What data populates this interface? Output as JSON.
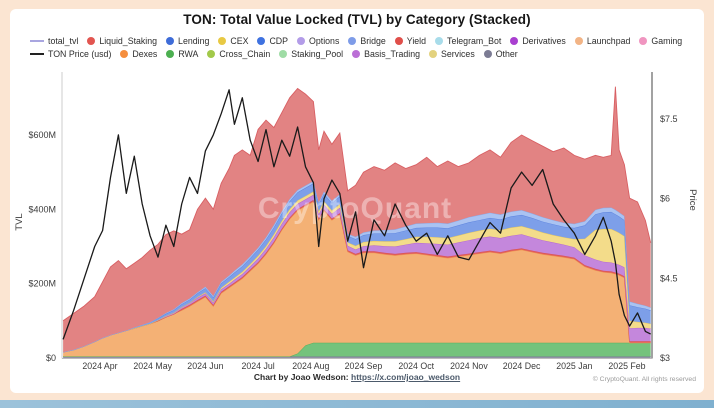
{
  "title": "TON: Total Value Locked (TVL) by Category (Stacked)",
  "watermark": "CryptoQuant",
  "footer": {
    "credit": "Chart by Joao Wedson:",
    "link": "https://x.com/joao_wedson",
    "copyright": "© CryptoQuant. All rights reserved"
  },
  "legend": {
    "row1": [
      {
        "label": "total_tvl",
        "color": "#a9a6e0",
        "type": "line"
      },
      {
        "label": "Liquid_Staking",
        "color": "#e25550",
        "type": "dot"
      },
      {
        "label": "Lending",
        "color": "#3e6cd8",
        "type": "dot"
      },
      {
        "label": "CEX",
        "color": "#e8c943",
        "type": "dot"
      },
      {
        "label": "CDP",
        "color": "#3f72e0",
        "type": "dot"
      },
      {
        "label": "Options",
        "color": "#b39ce8",
        "type": "dot"
      },
      {
        "label": "Bridge",
        "color": "#7e9ce8",
        "type": "dot"
      },
      {
        "label": "Yield",
        "color": "#e04f4a",
        "type": "dot"
      },
      {
        "label": "Telegram_Bot",
        "color": "#a8dcea",
        "type": "dot"
      },
      {
        "label": "Derivatives",
        "color": "#a93fd0",
        "type": "dot"
      },
      {
        "label": "Launchpad",
        "color": "#f2b486",
        "type": "dot"
      },
      {
        "label": "Gaming",
        "color": "#f095c0",
        "type": "dot"
      }
    ],
    "row2": [
      {
        "label": "TON Price (usd)",
        "color": "#222222",
        "type": "line"
      },
      {
        "label": "Dexes",
        "color": "#f58e3e",
        "type": "dot"
      },
      {
        "label": "RWA",
        "color": "#4caf50",
        "type": "dot"
      },
      {
        "label": "Cross_Chain",
        "color": "#a2c94a",
        "type": "dot"
      },
      {
        "label": "Staking_Pool",
        "color": "#9fdca5",
        "type": "dot"
      },
      {
        "label": "Basis_Trading",
        "color": "#bb6fd6",
        "type": "dot"
      },
      {
        "label": "Services",
        "color": "#e3d27e",
        "type": "dot"
      },
      {
        "label": "Other",
        "color": "#7c7c94",
        "type": "dot"
      }
    ]
  },
  "chart_data": {
    "type": "area",
    "stacked": true,
    "x_unit": "months since 2024-03-01",
    "x_axis_ticks": [
      {
        "m": 1,
        "label": "2024 Apr"
      },
      {
        "m": 2,
        "label": "2024 May"
      },
      {
        "m": 3,
        "label": "2024 Jun"
      },
      {
        "m": 4,
        "label": "2024 Jul"
      },
      {
        "m": 5,
        "label": "2024 Aug"
      },
      {
        "m": 6,
        "label": "2024 Sep"
      },
      {
        "m": 7,
        "label": "2024 Oct"
      },
      {
        "m": 8,
        "label": "2024 Nov"
      },
      {
        "m": 9,
        "label": "2024 Dec"
      },
      {
        "m": 10,
        "label": "2025 Jan"
      },
      {
        "m": 11,
        "label": "2025 Feb"
      }
    ],
    "left_axis": {
      "label": "TVL",
      "ticks": [
        {
          "v": 0,
          "label": "$0"
        },
        {
          "v": 200,
          "label": "$200M"
        },
        {
          "v": 400,
          "label": "$400M"
        },
        {
          "v": 600,
          "label": "$600M"
        }
      ],
      "range": [
        0,
        750
      ]
    },
    "right_axis": {
      "label": "Price",
      "ticks": [
        {
          "v": 3,
          "label": "$3"
        },
        {
          "v": 4.5,
          "label": "$4.5"
        },
        {
          "v": 6,
          "label": "$6"
        },
        {
          "v": 7.5,
          "label": "$7.5"
        }
      ],
      "range": [
        3,
        8.25
      ]
    },
    "grid": false,
    "legend_position": "top",
    "x": [
      0.3,
      0.5,
      0.7,
      0.9,
      1.05,
      1.2,
      1.35,
      1.5,
      1.65,
      1.8,
      1.95,
      2.1,
      2.25,
      2.4,
      2.55,
      2.7,
      2.85,
      3.0,
      3.15,
      3.3,
      3.45,
      3.55,
      3.7,
      3.85,
      4.0,
      4.15,
      4.3,
      4.45,
      4.6,
      4.75,
      4.9,
      5.05,
      5.15,
      5.25,
      5.4,
      5.55,
      5.7,
      5.85,
      6.0,
      6.2,
      6.4,
      6.6,
      6.8,
      7.0,
      7.2,
      7.4,
      7.6,
      7.8,
      8.0,
      8.2,
      8.4,
      8.6,
      8.8,
      9.0,
      9.2,
      9.4,
      9.6,
      9.8,
      10.0,
      10.2,
      10.4,
      10.55,
      10.7,
      10.78,
      10.85,
      10.95,
      11.05,
      11.2,
      11.35,
      11.45
    ],
    "series": [
      {
        "name": "Other",
        "fill": "#8f90a6",
        "stroke": "#7c7c94",
        "unit": "$M",
        "values": [
          4,
          4,
          4,
          4,
          4,
          4,
          4,
          4,
          4,
          4,
          4,
          4,
          4,
          4,
          4,
          4,
          4,
          4,
          4,
          4,
          4,
          4,
          4,
          4,
          4,
          4,
          4,
          4,
          4,
          4,
          4,
          4,
          4,
          4,
          4,
          4,
          4,
          4,
          4,
          4,
          4,
          4,
          4,
          4,
          4,
          4,
          4,
          4,
          4,
          4,
          4,
          4,
          4,
          4,
          4,
          4,
          4,
          4,
          4,
          4,
          4,
          4,
          4,
          4,
          4,
          4,
          4,
          4,
          4,
          4
        ]
      },
      {
        "name": "RWA",
        "fill": "#74c37c",
        "stroke": "#54b05e",
        "unit": "$M",
        "values": [
          0,
          0,
          0,
          0,
          0,
          0,
          0,
          0,
          0,
          0,
          0,
          0,
          0,
          0,
          0,
          0,
          0,
          0,
          0,
          0,
          0,
          0,
          0,
          0,
          0,
          0,
          0,
          0,
          0,
          8,
          30,
          37,
          37,
          37,
          37,
          37,
          37,
          37,
          37,
          37,
          37,
          37,
          37,
          37,
          37,
          37,
          37,
          37,
          37,
          37,
          37,
          37,
          37,
          37,
          37,
          37,
          37,
          37,
          37,
          37,
          37,
          37,
          37,
          37,
          37,
          37,
          37,
          37,
          37,
          37
        ]
      },
      {
        "name": "Dexes",
        "fill": "#f4b175",
        "stroke": "#f09a50",
        "unit": "$M",
        "values": [
          12,
          18,
          28,
          40,
          50,
          58,
          64,
          70,
          76,
          82,
          88,
          96,
          106,
          114,
          124,
          135,
          148,
          160,
          135,
          170,
          185,
          195,
          210,
          230,
          250,
          275,
          305,
          340,
          370,
          385,
          375,
          380,
          330,
          355,
          330,
          345,
          245,
          235,
          242,
          242,
          238,
          235,
          238,
          240,
          236,
          232,
          228,
          232,
          236,
          240,
          244,
          240,
          246,
          250,
          244,
          238,
          234,
          230,
          225,
          205,
          195,
          190,
          188,
          185,
          182,
          175,
          0,
          0,
          0,
          0
        ]
      },
      {
        "name": "Yield",
        "fill": "#e2615e",
        "stroke": "#d84f4c",
        "unit": "$M",
        "values": [
          0,
          0,
          0,
          0,
          0,
          0,
          0,
          0,
          0,
          0,
          0,
          0,
          0,
          0,
          4,
          4,
          4,
          4,
          4,
          4,
          4,
          4,
          4,
          4,
          4,
          4,
          4,
          4,
          4,
          4,
          4,
          4,
          4,
          4,
          4,
          4,
          4,
          4,
          4,
          4,
          4,
          4,
          4,
          4,
          4,
          4,
          4,
          4,
          4,
          4,
          4,
          4,
          4,
          4,
          4,
          4,
          4,
          4,
          4,
          4,
          4,
          4,
          4,
          4,
          4,
          4,
          4,
          4,
          4,
          4
        ]
      },
      {
        "name": "Derivatives",
        "fill": "#c487dc",
        "stroke": "#b264cf",
        "unit": "$M",
        "values": [
          0,
          0,
          0,
          0,
          0,
          0,
          0,
          0,
          0,
          0,
          0,
          2,
          3,
          4,
          5,
          5,
          6,
          6,
          6,
          7,
          7,
          8,
          8,
          9,
          10,
          11,
          12,
          13,
          14,
          14,
          14,
          14,
          12,
          13,
          13,
          14,
          12,
          12,
          14,
          16,
          18,
          20,
          22,
          25,
          28,
          30,
          32,
          34,
          36,
          38,
          38,
          38,
          38,
          38,
          36,
          34,
          32,
          30,
          28,
          26,
          25,
          24,
          24,
          24,
          24,
          24,
          35,
          36,
          36,
          34
        ]
      },
      {
        "name": "CEX",
        "fill": "#f3dc8a",
        "stroke": "#e6c65a",
        "unit": "$M",
        "values": [
          0,
          0,
          0,
          0,
          0,
          0,
          0,
          0,
          0,
          0,
          0,
          0,
          0,
          0,
          0,
          0,
          2,
          3,
          3,
          4,
          5,
          5,
          6,
          6,
          7,
          7,
          8,
          8,
          9,
          9,
          9,
          9,
          8,
          9,
          9,
          10,
          9,
          10,
          11,
          12,
          13,
          14,
          15,
          16,
          17,
          18,
          18,
          19,
          20,
          20,
          21,
          21,
          22,
          22,
          22,
          21,
          20,
          20,
          22,
          45,
          80,
          88,
          90,
          88,
          86,
          84,
          20,
          16,
          14,
          13
        ]
      },
      {
        "name": "Lending",
        "fill": "#7d9fe9",
        "stroke": "#5c83de",
        "unit": "$M",
        "values": [
          0,
          0,
          0,
          0,
          0,
          0,
          0,
          0,
          2,
          3,
          4,
          5,
          6,
          7,
          8,
          9,
          10,
          11,
          11,
          12,
          13,
          14,
          15,
          16,
          17,
          18,
          19,
          20,
          21,
          22,
          22,
          22,
          19,
          20,
          20,
          21,
          18,
          18,
          19,
          20,
          21,
          22,
          23,
          24,
          25,
          26,
          26,
          27,
          28,
          28,
          29,
          29,
          30,
          30,
          30,
          29,
          29,
          28,
          30,
          36,
          42,
          45,
          46,
          45,
          44,
          43,
          42,
          40,
          38,
          36
        ]
      },
      {
        "name": "Bridge",
        "fill": "#aac3f2",
        "stroke": "#8aa9e8",
        "unit": "$M",
        "values": [
          0,
          0,
          0,
          0,
          0,
          0,
          0,
          0,
          0,
          0,
          0,
          1,
          2,
          2,
          3,
          3,
          3,
          4,
          4,
          4,
          4,
          5,
          5,
          5,
          5,
          6,
          6,
          6,
          6,
          6,
          6,
          6,
          5,
          6,
          6,
          6,
          5,
          6,
          7,
          8,
          9,
          10,
          11,
          12,
          12,
          13,
          13,
          13,
          14,
          14,
          14,
          13,
          13,
          13,
          12,
          12,
          11,
          11,
          11,
          11,
          12,
          12,
          12,
          12,
          11,
          11,
          10,
          9,
          8,
          8
        ]
      },
      {
        "name": "Liquid_Staking",
        "fill": "#e28383",
        "stroke": "#d85f63",
        "unit": "$M",
        "values": [
          84,
          98,
          108,
          121,
          151,
          183,
          194,
          166,
          173,
          181,
          194,
          198,
          211,
          211,
          185,
          185,
          223,
          238,
          233,
          265,
          288,
          310,
          308,
          271,
          318,
          315,
          262,
          265,
          272,
          273,
          246,
          214,
          141,
          162,
          152,
          164,
          116,
          139,
          162,
          172,
          161,
          179,
          156,
          158,
          177,
          151,
          168,
          145,
          146,
          160,
          169,
          154,
          186,
          202,
          196,
          191,
          184,
          201,
          184,
          167,
          146,
          136,
          140,
          331,
          168,
          138,
          278,
          274,
          229,
          174
        ]
      }
    ],
    "price_line": {
      "name": "TON Price (usd)",
      "color": "#1a1a1a",
      "unit": "USD",
      "values": [
        3.35,
        3.9,
        4.5,
        5.1,
        5.4,
        6.4,
        7.2,
        6.1,
        6.8,
        5.9,
        5.3,
        4.9,
        5.5,
        5.1,
        5.9,
        6.4,
        6.1,
        6.9,
        7.2,
        7.6,
        8.05,
        7.4,
        7.9,
        7.1,
        6.7,
        7.3,
        6.6,
        7.1,
        6.8,
        7.35,
        6.6,
        6.3,
        5.1,
        6.0,
        6.35,
        6.1,
        5.2,
        5.75,
        4.7,
        5.6,
        5.3,
        5.9,
        5.5,
        5.2,
        5.35,
        4.95,
        5.3,
        4.9,
        4.85,
        5.2,
        5.55,
        5.35,
        6.2,
        6.5,
        6.25,
        6.55,
        5.9,
        5.6,
        5.35,
        4.95,
        5.3,
        5.65,
        5.2,
        4.8,
        4.2,
        3.8,
        3.6,
        3.85,
        3.5,
        3.45
      ]
    },
    "total_tvl_line": {
      "name": "total_tvl",
      "color": "#d85f63",
      "note": "sum of stacked series"
    }
  }
}
